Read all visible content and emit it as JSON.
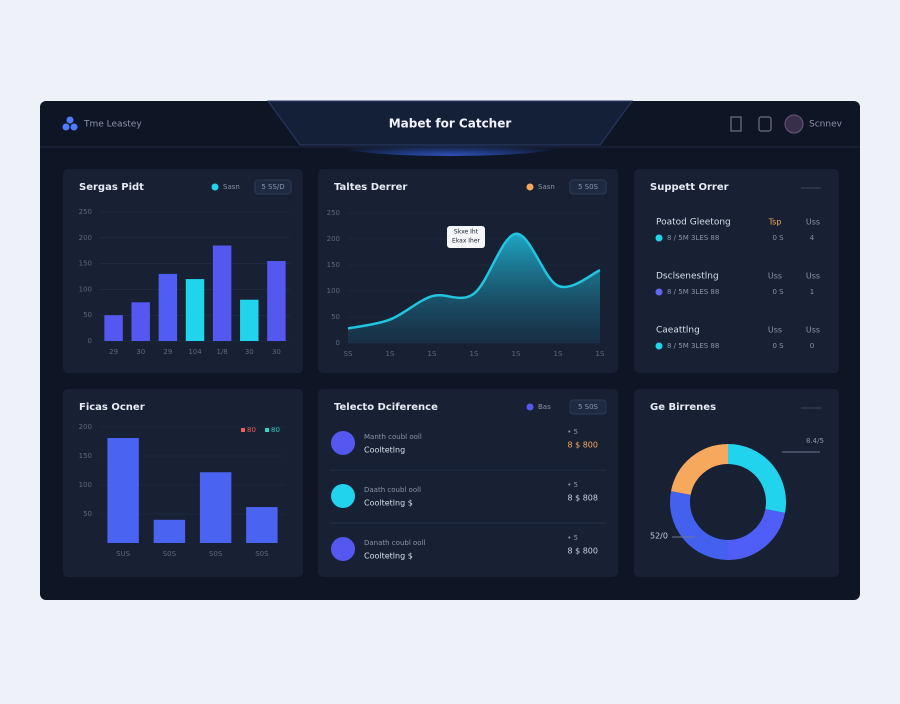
{
  "header": {
    "brand": "Tme Leastey",
    "title": "Mabet for Catcher",
    "user": "Scnnev"
  },
  "panels": [
    {
      "title": "Sergas Pidt",
      "legend": "Sasn",
      "filter": "5 SS/D",
      "chart": {
        "type": "bar",
        "categories": [
          "29",
          "30",
          "29",
          "104",
          "1/8",
          "30",
          "30"
        ],
        "values": [
          50,
          75,
          130,
          120,
          185,
          80,
          155
        ],
        "colors": [
          "#5458f0",
          "#5458f0",
          "#4f5df2",
          "#22d3ee",
          "#5458f0",
          "#22d3ee",
          "#5458f0"
        ],
        "ylim": [
          0,
          250
        ],
        "yticks": [
          0,
          50,
          100,
          150,
          200,
          250
        ]
      }
    },
    {
      "title": "Taltes Derrer",
      "legend": "Sasn",
      "filter": "5 S0S",
      "chart": {
        "type": "area",
        "categories": [
          "SS",
          "1S",
          "1S",
          "1S",
          "1S",
          "1S",
          "1S"
        ],
        "values": [
          28,
          45,
          90,
          95,
          210,
          110,
          140
        ],
        "color": "#22c5e0",
        "ylim": [
          0,
          250
        ],
        "yticks": [
          0,
          50,
          100,
          150,
          200,
          250
        ],
        "tooltip": [
          "Skxe Iht",
          "Ekax Iher"
        ]
      }
    },
    {
      "title": "Suppett Orrer",
      "rows": [
        {
          "name": "Poatod Gleetong",
          "v1": "Tsp",
          "v2": "Uss",
          "detail": "8 / 5M 3LES 88",
          "d1": "0 S",
          "d2": "4",
          "color": "#22d3ee",
          "accent": "#f6a95c"
        },
        {
          "name": "Dsclsenestlng",
          "v1": "Uss",
          "v2": "Uss",
          "detail": "8 / 5M 3LES 88",
          "d1": "0 S",
          "d2": "1",
          "color": "#6366f1",
          "accent": "#8a94a8"
        },
        {
          "name": "Caeattlng",
          "v1": "Uss",
          "v2": "Uss",
          "detail": "8 / 5M 3LES 88",
          "d1": "0 S",
          "d2": "0",
          "color": "#22d3ee",
          "accent": "#8a94a8"
        }
      ]
    },
    {
      "title": "Ficas Ocner",
      "legend": [
        "80",
        "80"
      ],
      "legend_colors": [
        "#f0605a",
        "#2dd4bf"
      ],
      "chart": {
        "type": "bar",
        "categories": [
          "SUS",
          "S0S",
          "S0S",
          "S0S"
        ],
        "values": [
          181,
          40,
          122,
          62
        ],
        "colors": [
          "#4a63f0",
          "#4a63f0",
          "#4a63f0",
          "#4a63f0"
        ],
        "ylim": [
          0,
          200
        ],
        "yticks": [
          50,
          100,
          150,
          200
        ]
      }
    },
    {
      "title": "Telecto Dciference",
      "legend": "Bas",
      "filter": "5 S0S",
      "rows": [
        {
          "line1": "Manth coubl ooll",
          "line2": "Cooltetlng",
          "top": "• 5",
          "bottom": "8 $ 800",
          "color": "#5458f0",
          "accent": "#f6a95c"
        },
        {
          "line1": "Daath coubl ooll",
          "line2": "Cooltetlng $",
          "top": "• 5",
          "bottom": "8 $ 808",
          "color": "#22d3ee",
          "accent": "#c8d0e0"
        },
        {
          "line1": "Danath coubl ooll",
          "line2": "Cooltetlng $",
          "top": "• 5",
          "bottom": "8 $ 800",
          "color": "#5458f0",
          "accent": "#c8d0e0"
        }
      ]
    },
    {
      "title": "Ge Birrenes",
      "chart": {
        "type": "donut",
        "values": [
          28,
          22,
          28,
          22
        ],
        "colors": [
          "#22d3ee",
          "#4f5ef7",
          "#4361ee",
          "#f6a95c"
        ],
        "labels": [
          "8.4/5",
          "52/0"
        ]
      }
    }
  ]
}
